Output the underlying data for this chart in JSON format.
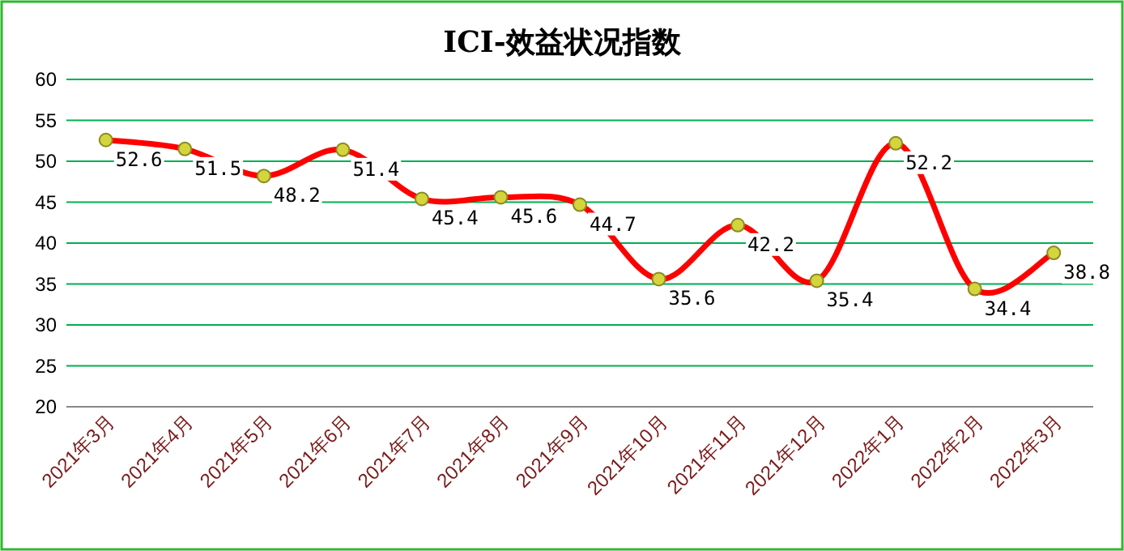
{
  "chart_data": {
    "type": "line",
    "title": "ICI-效益状况指数",
    "categories": [
      "2021年3月",
      "2021年4月",
      "2021年5月",
      "2021年6月",
      "2021年7月",
      "2021年8月",
      "2021年9月",
      "2021年10月",
      "2021年11月",
      "2021年12月",
      "2022年1月",
      "2022年2月",
      "2022年3月"
    ],
    "series": [
      {
        "color": "#ff0000",
        "values": [
          52.6,
          51.5,
          48.2,
          51.4,
          45.4,
          45.6,
          44.7,
          35.6,
          42.2,
          35.4,
          52.2,
          34.4,
          38.8
        ]
      }
    ],
    "ylim": [
      20,
      60
    ],
    "yticks": [
      20,
      25,
      30,
      35,
      40,
      45,
      50,
      55,
      60
    ],
    "grid": "y",
    "marker": "circle",
    "data_labels": true
  }
}
